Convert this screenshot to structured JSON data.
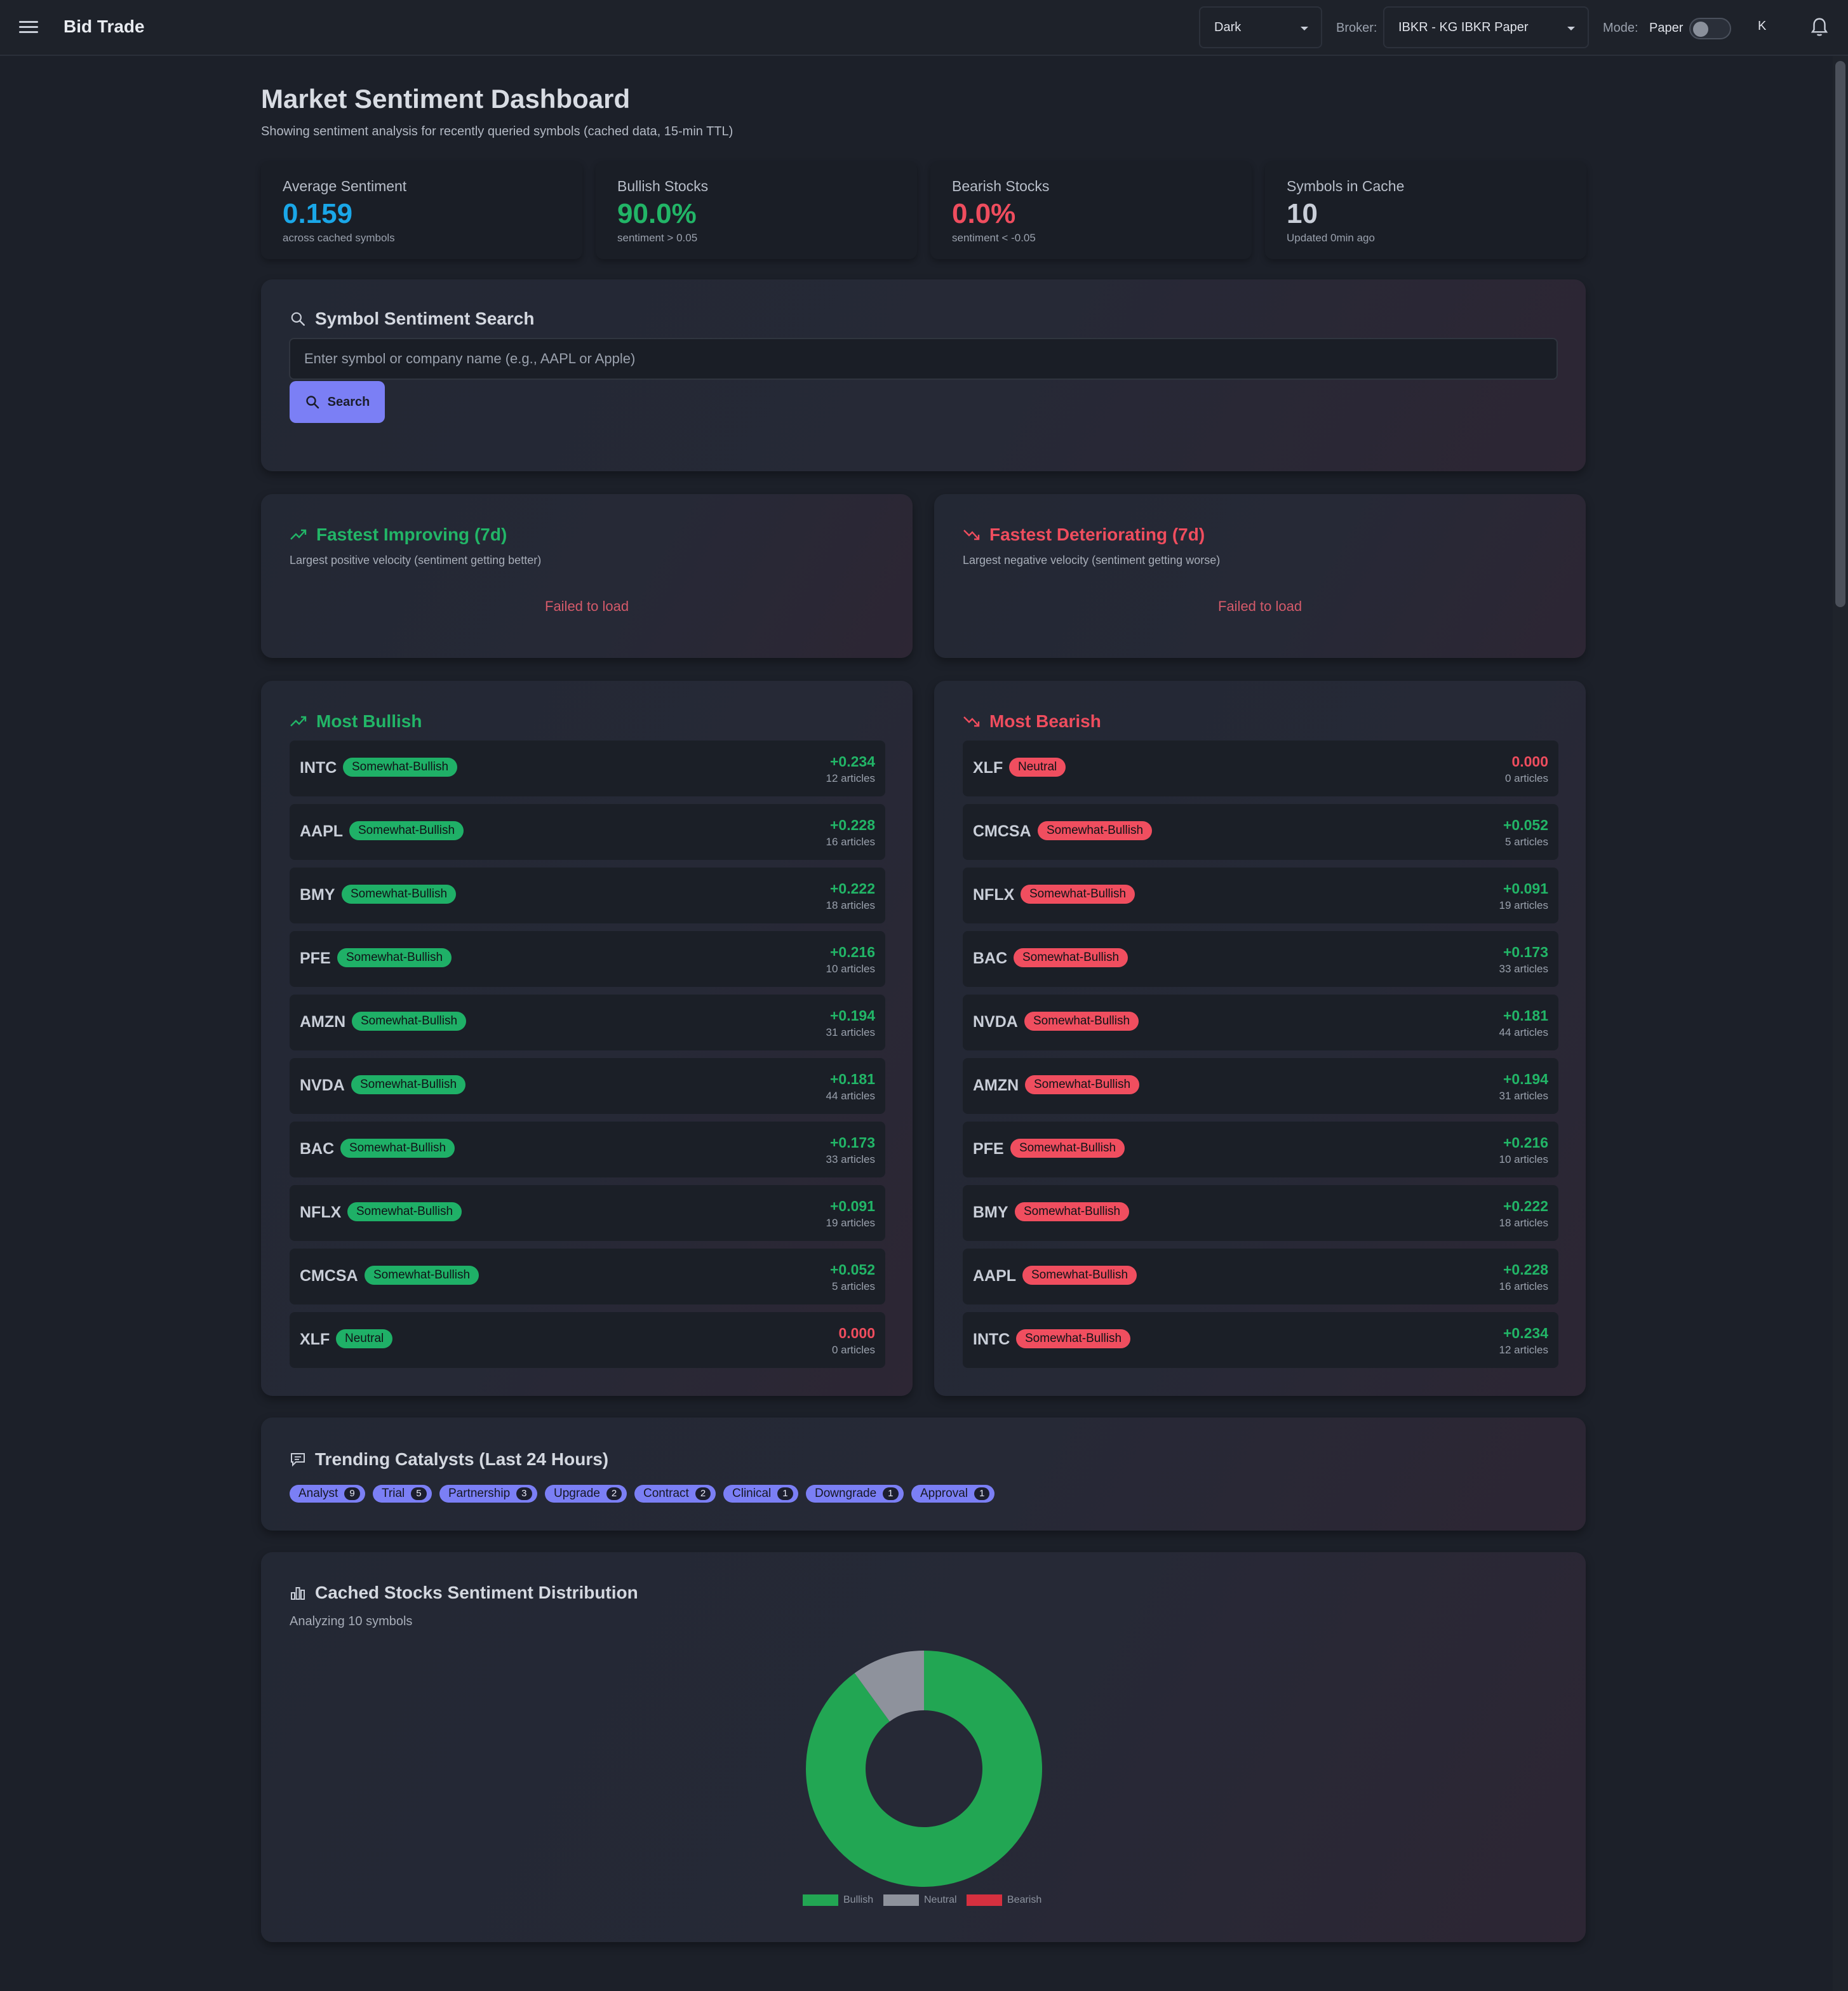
{
  "app": {
    "brand": "Bid Trade"
  },
  "topbar": {
    "theme_value": "Dark",
    "broker_label": "Broker:",
    "broker_value": "IBKR - KG IBKR Paper",
    "mode_label": "Mode:",
    "mode_value": "Paper",
    "avatar_initial": "K"
  },
  "page": {
    "title": "Market Sentiment Dashboard",
    "subtitle": "Showing sentiment analysis for recently queried symbols (cached data, 15-min TTL)"
  },
  "stats": [
    {
      "title": "Average Sentiment",
      "value": "0.159",
      "sub": "across cached symbols",
      "color": "#1aa7e8"
    },
    {
      "title": "Bullish Stocks",
      "value": "90.0%",
      "sub": "sentiment > 0.05",
      "color": "#22b567"
    },
    {
      "title": "Bearish Stocks",
      "value": "0.0%",
      "sub": "sentiment < -0.05",
      "color": "#ef4d5e"
    },
    {
      "title": "Symbols in Cache",
      "value": "10",
      "sub": "Updated 0min ago",
      "color": "#c9ced8"
    }
  ],
  "search": {
    "title": "Symbol Sentiment Search",
    "placeholder": "Enter symbol or company name (e.g., AAPL or Apple)",
    "button": "Search"
  },
  "improving": {
    "title": "Fastest Improving (7d)",
    "sub": "Largest positive velocity (sentiment getting better)",
    "status": "Failed to load"
  },
  "deteriorating": {
    "title": "Fastest Deteriorating (7d)",
    "sub": "Largest negative velocity (sentiment getting worse)",
    "status": "Failed to load"
  },
  "most_bullish": {
    "title": "Most Bullish",
    "items": [
      {
        "symbol": "INTC",
        "label": "Somewhat-Bullish",
        "score": "+0.234",
        "articles": "12 articles"
      },
      {
        "symbol": "AAPL",
        "label": "Somewhat-Bullish",
        "score": "+0.228",
        "articles": "16 articles"
      },
      {
        "symbol": "BMY",
        "label": "Somewhat-Bullish",
        "score": "+0.222",
        "articles": "18 articles"
      },
      {
        "symbol": "PFE",
        "label": "Somewhat-Bullish",
        "score": "+0.216",
        "articles": "10 articles"
      },
      {
        "symbol": "AMZN",
        "label": "Somewhat-Bullish",
        "score": "+0.194",
        "articles": "31 articles"
      },
      {
        "symbol": "NVDA",
        "label": "Somewhat-Bullish",
        "score": "+0.181",
        "articles": "44 articles"
      },
      {
        "symbol": "BAC",
        "label": "Somewhat-Bullish",
        "score": "+0.173",
        "articles": "33 articles"
      },
      {
        "symbol": "NFLX",
        "label": "Somewhat-Bullish",
        "score": "+0.091",
        "articles": "19 articles"
      },
      {
        "symbol": "CMCSA",
        "label": "Somewhat-Bullish",
        "score": "+0.052",
        "articles": "5 articles"
      },
      {
        "symbol": "XLF",
        "label": "Neutral",
        "score": "0.000",
        "articles": "0 articles"
      }
    ]
  },
  "most_bearish": {
    "title": "Most Bearish",
    "items": [
      {
        "symbol": "XLF",
        "label": "Neutral",
        "score": "0.000",
        "articles": "0 articles"
      },
      {
        "symbol": "CMCSA",
        "label": "Somewhat-Bullish",
        "score": "+0.052",
        "articles": "5 articles"
      },
      {
        "symbol": "NFLX",
        "label": "Somewhat-Bullish",
        "score": "+0.091",
        "articles": "19 articles"
      },
      {
        "symbol": "BAC",
        "label": "Somewhat-Bullish",
        "score": "+0.173",
        "articles": "33 articles"
      },
      {
        "symbol": "NVDA",
        "label": "Somewhat-Bullish",
        "score": "+0.181",
        "articles": "44 articles"
      },
      {
        "symbol": "AMZN",
        "label": "Somewhat-Bullish",
        "score": "+0.194",
        "articles": "31 articles"
      },
      {
        "symbol": "PFE",
        "label": "Somewhat-Bullish",
        "score": "+0.216",
        "articles": "10 articles"
      },
      {
        "symbol": "BMY",
        "label": "Somewhat-Bullish",
        "score": "+0.222",
        "articles": "18 articles"
      },
      {
        "symbol": "AAPL",
        "label": "Somewhat-Bullish",
        "score": "+0.228",
        "articles": "16 articles"
      },
      {
        "symbol": "INTC",
        "label": "Somewhat-Bullish",
        "score": "+0.234",
        "articles": "12 articles"
      }
    ]
  },
  "catalysts": {
    "title": "Trending Catalysts (Last 24 Hours)",
    "items": [
      {
        "label": "Analyst",
        "count": "9"
      },
      {
        "label": "Trial",
        "count": "5"
      },
      {
        "label": "Partnership",
        "count": "3"
      },
      {
        "label": "Upgrade",
        "count": "2"
      },
      {
        "label": "Contract",
        "count": "2"
      },
      {
        "label": "Clinical",
        "count": "1"
      },
      {
        "label": "Downgrade",
        "count": "1"
      },
      {
        "label": "Approval",
        "count": "1"
      }
    ]
  },
  "distribution": {
    "title": "Cached Stocks Sentiment Distribution",
    "sub": "Analyzing 10 symbols",
    "legend": [
      {
        "label": "Bullish",
        "color": "#22a653"
      },
      {
        "label": "Neutral",
        "color": "#8e929c"
      },
      {
        "label": "Bearish",
        "color": "#d6303f"
      }
    ]
  },
  "chart_data": {
    "type": "pie",
    "categories": [
      "Bullish",
      "Neutral",
      "Bearish"
    ],
    "values": [
      9,
      1,
      0
    ],
    "colors": [
      "#22a653",
      "#8e929c",
      "#d6303f"
    ],
    "legend_position": "bottom"
  },
  "colors": {
    "positive": "#22b567",
    "negative": "#ef4d5e",
    "bullish_badge": "#1fb067",
    "bearish_badge": "#f04e5f",
    "accent": "#7b7ff5"
  }
}
